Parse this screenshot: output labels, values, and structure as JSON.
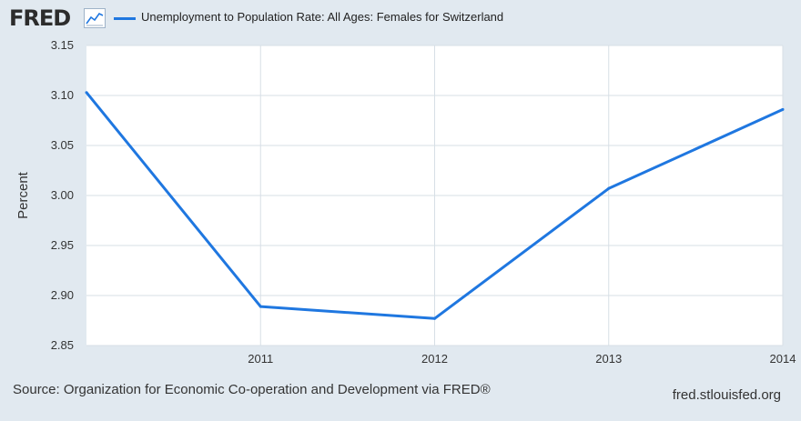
{
  "header": {
    "logo_text": "FRED",
    "logo_icon": "line-chart-icon",
    "legend_label": "Unemployment to Population Rate: All Ages: Females for Switzerland"
  },
  "colors": {
    "series": "#1f77e0",
    "background": "#e1e9f0",
    "plot": "#ffffff",
    "grid": "#d7dfe6"
  },
  "chart_data": {
    "type": "line",
    "title": "",
    "xlabel": "",
    "ylabel": "Percent",
    "x": [
      2010,
      2011,
      2012,
      2013,
      2014
    ],
    "x_tick_labels": [
      "2011",
      "2012",
      "2013",
      "2014"
    ],
    "y_tick_labels": [
      "2.85",
      "2.90",
      "2.95",
      "3.00",
      "3.05",
      "3.10",
      "3.15"
    ],
    "ylim": [
      2.85,
      3.15
    ],
    "grid": true,
    "legend_position": "top-left",
    "series": [
      {
        "name": "Unemployment to Population Rate: All Ages: Females for Switzerland",
        "values": [
          3.103,
          2.889,
          2.877,
          3.007,
          3.086
        ]
      }
    ]
  },
  "footer": {
    "source": "Source: Organization for Economic Co-operation and Development via FRED®",
    "url": "fred.stlouisfed.org"
  }
}
